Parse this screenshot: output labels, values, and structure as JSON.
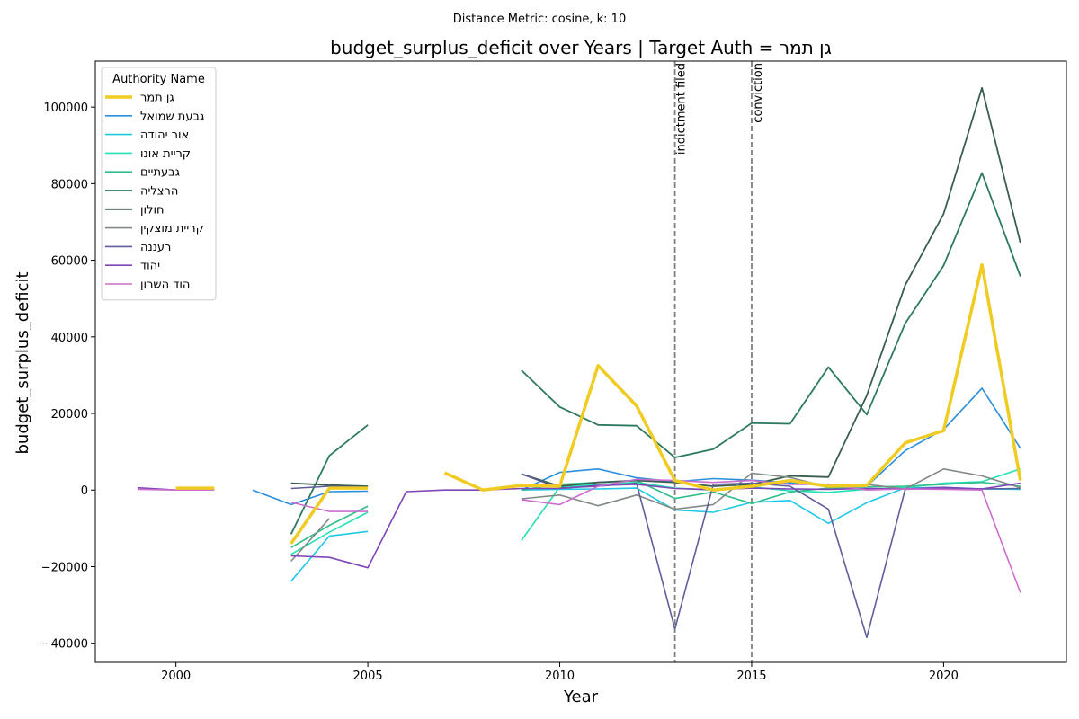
{
  "suptitle": "Distance Metric: cosine, k: 10",
  "chart_data": {
    "type": "line",
    "title": "budget_surplus_deficit over Years | Target Auth = גן תמר",
    "xlabel": "Year",
    "ylabel": "budget_surplus_deficit",
    "xlim": [
      1997.9,
      2023.2
    ],
    "ylim": [
      -45000,
      112000
    ],
    "xticks": [
      2000,
      2005,
      2010,
      2015,
      2020
    ],
    "yticks": [
      -40000,
      -20000,
      0,
      20000,
      40000,
      60000,
      80000,
      100000
    ],
    "grid": false,
    "legend": {
      "title": "Authority Name",
      "position": "upper-left"
    },
    "events": [
      {
        "x": 2013,
        "label": "indictment filed"
      },
      {
        "x": 2015,
        "label": "conviction"
      }
    ],
    "series": [
      {
        "name": "גן תמר",
        "color": "#f0cb22",
        "width": 3.5,
        "target": true,
        "points": [
          [
            1999,
            null
          ],
          [
            2000,
            500
          ],
          [
            2001,
            500
          ],
          [
            2002,
            null
          ],
          [
            2003,
            -14000
          ],
          [
            2004,
            500
          ],
          [
            2005,
            500
          ],
          [
            2006,
            null
          ],
          [
            2007,
            4500
          ],
          [
            2008,
            0
          ],
          [
            2009,
            1200
          ],
          [
            2010,
            1000
          ],
          [
            2011,
            32500
          ],
          [
            2012,
            22000
          ],
          [
            2013,
            2500
          ],
          [
            2014,
            0
          ],
          [
            2015,
            1000
          ],
          [
            2016,
            2500
          ],
          [
            2017,
            1000
          ],
          [
            2018,
            1200
          ],
          [
            2019,
            12300
          ],
          [
            2020,
            15500
          ],
          [
            2021,
            58800
          ],
          [
            2022,
            2500
          ]
        ]
      },
      {
        "name": "גבעת שמואל",
        "color": "#2a8fde",
        "width": 1.6,
        "points": [
          [
            2000,
            500
          ],
          [
            2001,
            null
          ],
          [
            2002,
            0
          ],
          [
            2003,
            -3800
          ],
          [
            2004,
            -400
          ],
          [
            2005,
            -300
          ],
          [
            2006,
            null
          ],
          [
            2009,
            0
          ],
          [
            2010,
            4600
          ],
          [
            2011,
            5500
          ],
          [
            2012,
            3200
          ],
          [
            2013,
            2200
          ],
          [
            2014,
            3000
          ],
          [
            2015,
            2600
          ],
          [
            2016,
            1900
          ],
          [
            2017,
            1500
          ],
          [
            2018,
            1000
          ],
          [
            2019,
            10300
          ],
          [
            2020,
            15800
          ],
          [
            2021,
            26600
          ],
          [
            2022,
            10900
          ]
        ]
      },
      {
        "name": "אור יהודה",
        "color": "#1ec8e8",
        "width": 1.6,
        "points": [
          [
            2003,
            -23800
          ],
          [
            2004,
            -12000
          ],
          [
            2005,
            -10800
          ],
          [
            2006,
            null
          ],
          [
            2009,
            0
          ],
          [
            2010,
            200
          ],
          [
            2011,
            300
          ],
          [
            2012,
            500
          ],
          [
            2013,
            -5200
          ],
          [
            2014,
            -5800
          ],
          [
            2015,
            -3200
          ],
          [
            2016,
            -2700
          ],
          [
            2017,
            -8700
          ],
          [
            2018,
            -3300
          ],
          [
            2019,
            600
          ],
          [
            2020,
            700
          ],
          [
            2021,
            300
          ],
          [
            2022,
            200
          ]
        ]
      },
      {
        "name": "קריית אונו",
        "color": "#25e0b5",
        "width": 1.6,
        "points": [
          [
            2003,
            -16800
          ],
          [
            2004,
            -11000
          ],
          [
            2005,
            -5800
          ],
          [
            2006,
            null
          ],
          [
            2009,
            -13200
          ],
          [
            2010,
            800
          ],
          [
            2011,
            1500
          ],
          [
            2012,
            2000
          ],
          [
            2013,
            500
          ],
          [
            2014,
            0
          ],
          [
            2015,
            800
          ],
          [
            2016,
            -200
          ],
          [
            2017,
            -600
          ],
          [
            2018,
            200
          ],
          [
            2019,
            700
          ],
          [
            2020,
            1800
          ],
          [
            2021,
            2200
          ],
          [
            2022,
            5500
          ]
        ]
      },
      {
        "name": "גבעתיים",
        "color": "#2fbf8a",
        "width": 1.6,
        "points": [
          [
            2003,
            -15000
          ],
          [
            2004,
            -9200
          ],
          [
            2005,
            -4200
          ],
          [
            2006,
            null
          ],
          [
            2009,
            0
          ],
          [
            2010,
            1500
          ],
          [
            2011,
            2000
          ],
          [
            2012,
            2500
          ],
          [
            2013,
            -2200
          ],
          [
            2014,
            -500
          ],
          [
            2015,
            -3500
          ],
          [
            2016,
            -500
          ],
          [
            2017,
            500
          ],
          [
            2018,
            800
          ],
          [
            2019,
            1000
          ],
          [
            2020,
            1500
          ],
          [
            2021,
            2000
          ],
          [
            2022,
            1000
          ]
        ]
      },
      {
        "name": "הרצליה",
        "color": "#2d7a61",
        "width": 1.8,
        "points": [
          [
            2003,
            -11500
          ],
          [
            2004,
            9000
          ],
          [
            2005,
            17000
          ],
          [
            2006,
            null
          ],
          [
            2009,
            31300
          ],
          [
            2010,
            21700
          ],
          [
            2011,
            17000
          ],
          [
            2012,
            16800
          ],
          [
            2013,
            8500
          ],
          [
            2014,
            10700
          ],
          [
            2015,
            17500
          ],
          [
            2016,
            17300
          ],
          [
            2017,
            32100
          ],
          [
            2018,
            19700
          ],
          [
            2019,
            43500
          ],
          [
            2020,
            58600
          ],
          [
            2021,
            82800
          ],
          [
            2022,
            55800
          ]
        ]
      },
      {
        "name": "חולון",
        "color": "#3a5e4e",
        "width": 1.8,
        "points": [
          [
            2003,
            1800
          ],
          [
            2004,
            1300
          ],
          [
            2005,
            1000
          ],
          [
            2006,
            null
          ],
          [
            2009,
            4200
          ],
          [
            2010,
            1000
          ],
          [
            2011,
            2000
          ],
          [
            2012,
            2500
          ],
          [
            2013,
            2000
          ],
          [
            2014,
            1000
          ],
          [
            2015,
            1500
          ],
          [
            2016,
            3700
          ],
          [
            2017,
            3400
          ],
          [
            2018,
            24700
          ],
          [
            2019,
            53500
          ],
          [
            2020,
            72100
          ],
          [
            2021,
            105000
          ],
          [
            2022,
            64600
          ]
        ]
      },
      {
        "name": "קריית מוצקין",
        "color": "#838a86",
        "width": 1.6,
        "points": [
          [
            2003,
            -18600
          ],
          [
            2004,
            -7400
          ],
          [
            2005,
            null
          ],
          [
            2009,
            -2300
          ],
          [
            2010,
            -1300
          ],
          [
            2011,
            -4100
          ],
          [
            2012,
            -1300
          ],
          [
            2013,
            -5000
          ],
          [
            2014,
            -3800
          ],
          [
            2015,
            4400
          ],
          [
            2016,
            3300
          ],
          [
            2017,
            800
          ],
          [
            2018,
            1500
          ],
          [
            2019,
            300
          ],
          [
            2020,
            5500
          ],
          [
            2021,
            3700
          ],
          [
            2022,
            600
          ]
        ]
      },
      {
        "name": "רעננה",
        "color": "#5e5e9a",
        "width": 1.6,
        "points": [
          [
            2003,
            400
          ],
          [
            2004,
            1000
          ],
          [
            2005,
            700
          ],
          [
            2006,
            null
          ],
          [
            2009,
            4200
          ],
          [
            2010,
            500
          ],
          [
            2011,
            1000
          ],
          [
            2012,
            1800
          ],
          [
            2013,
            -36300
          ],
          [
            2014,
            1500
          ],
          [
            2015,
            1800
          ],
          [
            2016,
            1000
          ],
          [
            2017,
            -5000
          ],
          [
            2018,
            -38500
          ],
          [
            2019,
            200
          ],
          [
            2020,
            500
          ],
          [
            2021,
            300
          ],
          [
            2022,
            400
          ]
        ]
      },
      {
        "name": "יהוד",
        "color": "#7f44b8",
        "width": 1.6,
        "points": [
          [
            1999,
            600
          ],
          [
            2000,
            0
          ],
          [
            2001,
            100
          ],
          [
            2002,
            null
          ],
          [
            2003,
            -17200
          ],
          [
            2004,
            -17600
          ],
          [
            2005,
            -20300
          ],
          [
            2006,
            -400
          ],
          [
            2007,
            0
          ],
          [
            2008,
            0
          ],
          [
            2009,
            400
          ],
          [
            2010,
            400
          ],
          [
            2011,
            1200
          ],
          [
            2012,
            1500
          ],
          [
            2013,
            400
          ],
          [
            2014,
            100
          ],
          [
            2015,
            500
          ],
          [
            2016,
            300
          ],
          [
            2017,
            200
          ],
          [
            2018,
            400
          ],
          [
            2019,
            300
          ],
          [
            2020,
            700
          ],
          [
            2021,
            300
          ],
          [
            2022,
            1800
          ]
        ]
      },
      {
        "name": "הוד השרון",
        "color": "#cc6ed0",
        "width": 1.6,
        "points": [
          [
            1999,
            200
          ],
          [
            2000,
            0
          ],
          [
            2001,
            0
          ],
          [
            2002,
            null
          ],
          [
            2003,
            -3200
          ],
          [
            2004,
            -5600
          ],
          [
            2005,
            -5600
          ],
          [
            2006,
            null
          ],
          [
            2009,
            -2500
          ],
          [
            2010,
            -3800
          ],
          [
            2011,
            1000
          ],
          [
            2012,
            2800
          ],
          [
            2013,
            2500
          ],
          [
            2014,
            2000
          ],
          [
            2015,
            2500
          ],
          [
            2016,
            1500
          ],
          [
            2017,
            1500
          ],
          [
            2018,
            0
          ],
          [
            2019,
            300
          ],
          [
            2020,
            200
          ],
          [
            2021,
            0
          ],
          [
            2022,
            -26800
          ]
        ]
      }
    ]
  }
}
